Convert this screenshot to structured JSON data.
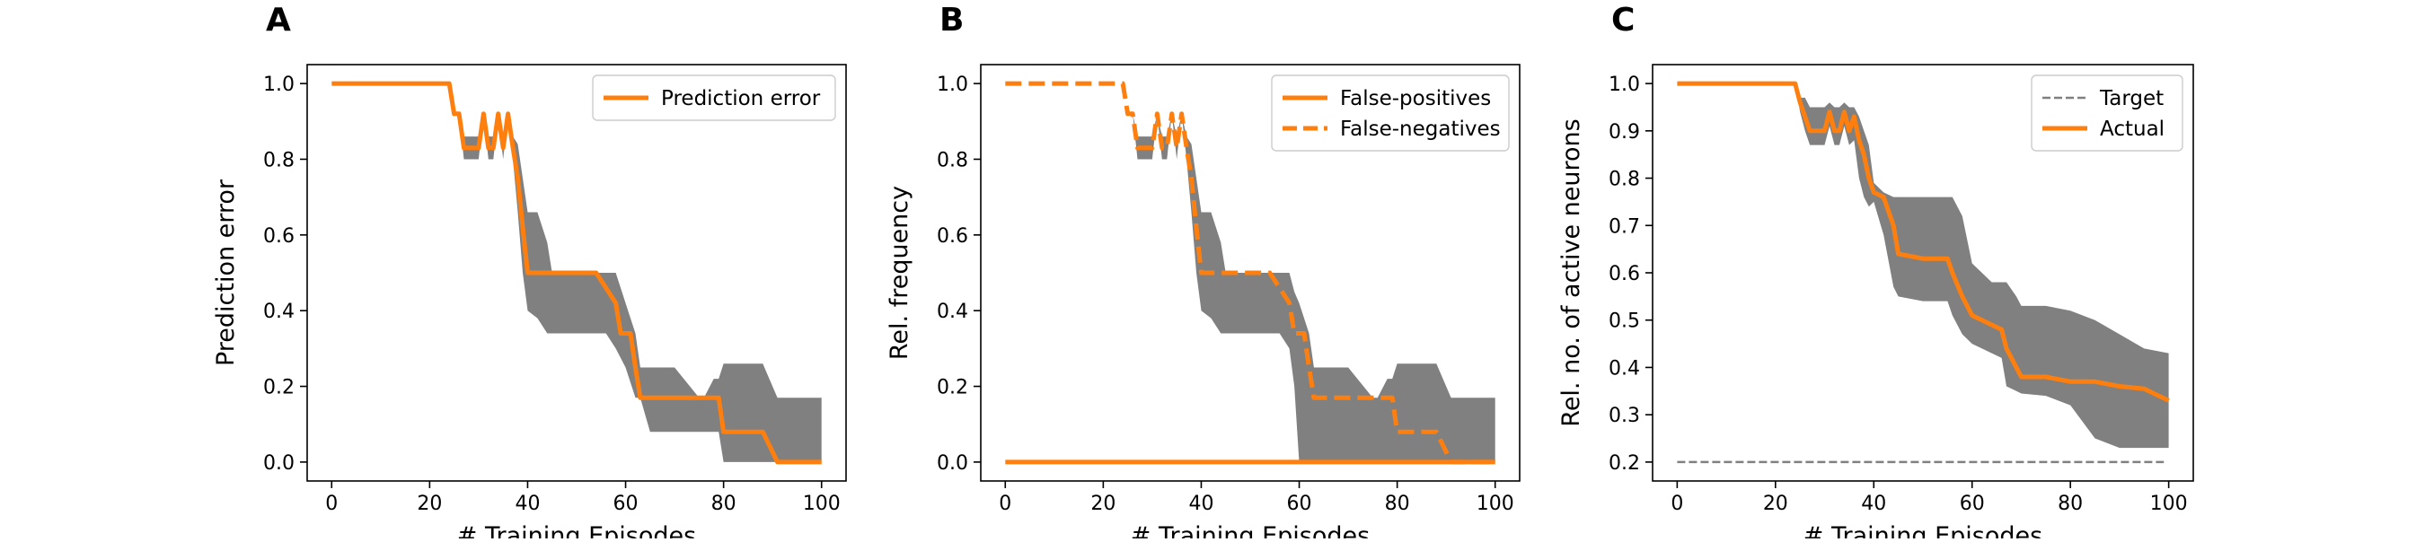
{
  "chart_data": [
    {
      "type": "line",
      "panel_label": "A",
      "xlabel": "# Training Episodes",
      "ylabel": "Prediction error",
      "xlim": [
        -5,
        105
      ],
      "ylim": [
        -0.05,
        1.05
      ],
      "xticks": [
        0,
        20,
        40,
        60,
        80,
        100
      ],
      "xtick_labels": [
        "0",
        "20",
        "40",
        "60",
        "80",
        "100"
      ],
      "yticks": [
        0.0,
        0.2,
        0.4,
        0.6,
        0.8,
        1.0
      ],
      "ytick_labels": [
        "0.0",
        "0.2",
        "0.4",
        "0.6",
        "0.8",
        "1.0"
      ],
      "legend_position": "upper-right",
      "band_color": "#808080",
      "series": [
        {
          "name": "Prediction error",
          "color": "#ff7f0e",
          "style": "solid",
          "x": [
            0,
            24,
            25,
            26,
            27,
            28,
            29,
            30,
            31,
            32,
            33,
            34,
            35,
            36,
            37,
            38,
            39,
            40,
            44,
            45,
            50,
            54,
            58,
            59,
            60,
            61,
            62,
            63,
            64,
            65,
            70,
            76,
            79,
            80,
            85,
            88,
            91,
            92,
            100
          ],
          "y": [
            1.0,
            1.0,
            0.92,
            0.92,
            0.83,
            0.83,
            0.83,
            0.83,
            0.92,
            0.83,
            0.83,
            0.92,
            0.83,
            0.92,
            0.83,
            0.75,
            0.62,
            0.5,
            0.5,
            0.5,
            0.5,
            0.5,
            0.42,
            0.34,
            0.34,
            0.34,
            0.25,
            0.17,
            0.17,
            0.17,
            0.17,
            0.17,
            0.17,
            0.08,
            0.08,
            0.08,
            0.0,
            0.0,
            0.0
          ]
        }
      ],
      "band": {
        "x": [
          0,
          24,
          25,
          26,
          27,
          28,
          29,
          30,
          31,
          32,
          33,
          34,
          35,
          36,
          37,
          38,
          39,
          40,
          42,
          44,
          45,
          50,
          54,
          56,
          58,
          60,
          62,
          63,
          65,
          70,
          75,
          76,
          78,
          79,
          80,
          85,
          88,
          91,
          92,
          100
        ],
        "upper": [
          1.0,
          1.0,
          0.92,
          0.92,
          0.86,
          0.86,
          0.86,
          0.86,
          0.92,
          0.86,
          0.86,
          0.92,
          0.86,
          0.92,
          0.86,
          0.84,
          0.75,
          0.66,
          0.66,
          0.58,
          0.5,
          0.5,
          0.5,
          0.5,
          0.5,
          0.42,
          0.34,
          0.25,
          0.25,
          0.25,
          0.17,
          0.17,
          0.22,
          0.22,
          0.26,
          0.26,
          0.26,
          0.17,
          0.17,
          0.17
        ],
        "lower": [
          1.0,
          1.0,
          0.92,
          0.92,
          0.8,
          0.8,
          0.8,
          0.8,
          0.92,
          0.8,
          0.8,
          0.92,
          0.8,
          0.92,
          0.8,
          0.66,
          0.5,
          0.4,
          0.38,
          0.34,
          0.34,
          0.34,
          0.34,
          0.34,
          0.3,
          0.25,
          0.17,
          0.17,
          0.08,
          0.08,
          0.08,
          0.08,
          0.08,
          0.08,
          0.0,
          0.0,
          0.0,
          0.0,
          0.0,
          0.0
        ]
      }
    },
    {
      "type": "line",
      "panel_label": "B",
      "xlabel": "# Training Episodes",
      "ylabel": "Rel. frequency",
      "xlim": [
        -5,
        105
      ],
      "ylim": [
        -0.05,
        1.05
      ],
      "xticks": [
        0,
        20,
        40,
        60,
        80,
        100
      ],
      "xtick_labels": [
        "0",
        "20",
        "40",
        "60",
        "80",
        "100"
      ],
      "yticks": [
        0.0,
        0.2,
        0.4,
        0.6,
        0.8,
        1.0
      ],
      "ytick_labels": [
        "0.0",
        "0.2",
        "0.4",
        "0.6",
        "0.8",
        "1.0"
      ],
      "legend_position": "upper-right",
      "band_color": "#808080",
      "series": [
        {
          "name": "False-positives",
          "color": "#ff7f0e",
          "style": "solid",
          "x": [
            0,
            100
          ],
          "y": [
            0.0,
            0.0
          ]
        },
        {
          "name": "False-negatives",
          "color": "#ff7f0e",
          "style": "dashed",
          "x": [
            0,
            24,
            25,
            26,
            27,
            28,
            29,
            30,
            31,
            32,
            33,
            34,
            35,
            36,
            37,
            38,
            39,
            40,
            44,
            45,
            50,
            54,
            58,
            59,
            60,
            61,
            62,
            63,
            64,
            65,
            70,
            76,
            79,
            80,
            85,
            88,
            91,
            92,
            100
          ],
          "y": [
            1.0,
            1.0,
            0.92,
            0.92,
            0.83,
            0.83,
            0.83,
            0.83,
            0.92,
            0.83,
            0.83,
            0.92,
            0.83,
            0.92,
            0.83,
            0.75,
            0.62,
            0.5,
            0.5,
            0.5,
            0.5,
            0.5,
            0.42,
            0.34,
            0.34,
            0.34,
            0.25,
            0.17,
            0.17,
            0.17,
            0.17,
            0.17,
            0.17,
            0.08,
            0.08,
            0.08,
            0.0,
            0.0,
            0.0
          ]
        }
      ],
      "band": {
        "x": [
          0,
          24,
          25,
          26,
          27,
          28,
          29,
          30,
          31,
          32,
          33,
          34,
          35,
          36,
          37,
          38,
          39,
          40,
          42,
          44,
          45,
          50,
          54,
          56,
          58,
          59,
          60,
          62,
          63,
          65,
          70,
          75,
          76,
          78,
          79,
          80,
          85,
          88,
          91,
          92,
          100
        ],
        "upper": [
          1.0,
          1.0,
          0.92,
          0.92,
          0.86,
          0.86,
          0.86,
          0.86,
          0.92,
          0.86,
          0.86,
          0.92,
          0.86,
          0.92,
          0.86,
          0.84,
          0.75,
          0.66,
          0.66,
          0.58,
          0.5,
          0.5,
          0.5,
          0.5,
          0.5,
          0.45,
          0.42,
          0.34,
          0.25,
          0.25,
          0.25,
          0.17,
          0.17,
          0.22,
          0.22,
          0.26,
          0.26,
          0.26,
          0.17,
          0.17,
          0.17
        ],
        "lower": [
          1.0,
          1.0,
          0.92,
          0.92,
          0.8,
          0.8,
          0.8,
          0.8,
          0.92,
          0.8,
          0.8,
          0.92,
          0.8,
          0.92,
          0.8,
          0.66,
          0.5,
          0.4,
          0.38,
          0.34,
          0.34,
          0.34,
          0.34,
          0.34,
          0.3,
          0.2,
          0.0,
          0.0,
          0.0,
          0.0,
          0.0,
          0.0,
          0.0,
          0.0,
          0.0,
          0.0,
          0.0,
          0.0,
          0.0,
          0.0,
          0.0
        ]
      }
    },
    {
      "type": "line",
      "panel_label": "C",
      "xlabel": "# Training Episodes",
      "ylabel": "Rel. no. of active neurons",
      "xlim": [
        -5,
        105
      ],
      "ylim": [
        0.16,
        1.04
      ],
      "xticks": [
        0,
        20,
        40,
        60,
        80,
        100
      ],
      "xtick_labels": [
        "0",
        "20",
        "40",
        "60",
        "80",
        "100"
      ],
      "yticks": [
        0.2,
        0.3,
        0.4,
        0.5,
        0.6,
        0.7,
        0.8,
        0.9,
        1.0
      ],
      "ytick_labels": [
        "0.2",
        "0.3",
        "0.4",
        "0.5",
        "0.6",
        "0.7",
        "0.8",
        "0.9",
        "1.0"
      ],
      "legend_position": "upper-right",
      "band_color": "#808080",
      "series": [
        {
          "name": "Target",
          "color": "#808080",
          "style": "dashed",
          "x": [
            0,
            99
          ],
          "y": [
            0.2,
            0.2
          ]
        },
        {
          "name": "Actual",
          "color": "#ff7f0e",
          "style": "solid",
          "x": [
            0,
            24,
            25,
            26,
            27,
            28,
            29,
            30,
            31,
            32,
            33,
            34,
            35,
            36,
            37,
            38,
            39,
            40,
            42,
            44,
            45,
            50,
            55,
            56,
            58,
            60,
            62,
            64,
            66,
            67,
            69,
            70,
            75,
            80,
            85,
            90,
            95,
            100
          ],
          "y": [
            1.0,
            1.0,
            0.96,
            0.93,
            0.9,
            0.9,
            0.9,
            0.9,
            0.94,
            0.9,
            0.9,
            0.94,
            0.9,
            0.93,
            0.88,
            0.85,
            0.8,
            0.77,
            0.76,
            0.7,
            0.64,
            0.63,
            0.63,
            0.6,
            0.55,
            0.51,
            0.5,
            0.49,
            0.48,
            0.44,
            0.4,
            0.38,
            0.38,
            0.37,
            0.37,
            0.36,
            0.355,
            0.33
          ]
        }
      ],
      "band": {
        "x": [
          0,
          24,
          25,
          26,
          27,
          28,
          29,
          30,
          31,
          32,
          33,
          34,
          35,
          36,
          37,
          38,
          39,
          40,
          42,
          44,
          45,
          50,
          55,
          56,
          58,
          60,
          62,
          64,
          66,
          67,
          69,
          70,
          75,
          80,
          85,
          90,
          95,
          100
        ],
        "upper": [
          1.0,
          1.0,
          0.97,
          0.97,
          0.95,
          0.95,
          0.95,
          0.95,
          0.96,
          0.95,
          0.95,
          0.96,
          0.95,
          0.95,
          0.93,
          0.9,
          0.87,
          0.79,
          0.77,
          0.76,
          0.76,
          0.76,
          0.76,
          0.76,
          0.72,
          0.62,
          0.6,
          0.58,
          0.58,
          0.58,
          0.55,
          0.53,
          0.53,
          0.52,
          0.5,
          0.47,
          0.44,
          0.43
        ],
        "lower": [
          1.0,
          1.0,
          0.94,
          0.9,
          0.87,
          0.87,
          0.87,
          0.87,
          0.91,
          0.87,
          0.87,
          0.91,
          0.87,
          0.88,
          0.8,
          0.76,
          0.74,
          0.75,
          0.68,
          0.57,
          0.55,
          0.54,
          0.54,
          0.51,
          0.47,
          0.45,
          0.44,
          0.43,
          0.42,
          0.36,
          0.35,
          0.345,
          0.34,
          0.32,
          0.25,
          0.23,
          0.23,
          0.23
        ]
      }
    }
  ]
}
